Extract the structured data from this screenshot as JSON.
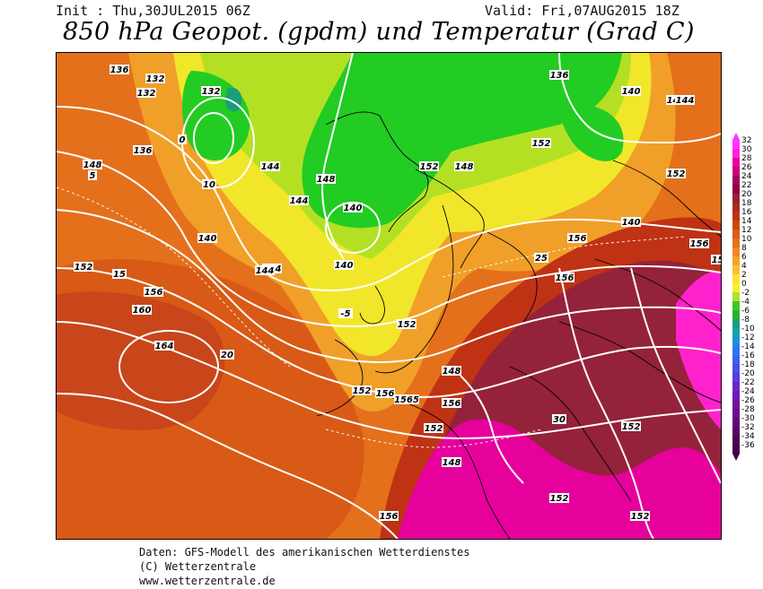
{
  "header": {
    "init_text": "Init : Thu,30JUL2015 06Z",
    "valid_text": "Valid: Fri,07AUG2015 18Z",
    "title": "850 hPa Geopot. (gpdm) und Temperatur (Grad C)"
  },
  "credits": {
    "line1": "Daten: GFS-Modell des amerikanischen Wetterdienstes",
    "line2": "(C) Wetterzentrale",
    "line3": "www.wetterzentrale.de"
  },
  "legend": {
    "ticks": [
      "32",
      "30",
      "28",
      "26",
      "24",
      "22",
      "20",
      "18",
      "16",
      "14",
      "12",
      "10",
      "8",
      "6",
      "4",
      "2",
      "0",
      "-2",
      "-4",
      "-6",
      "-8",
      "-10",
      "-12",
      "-14",
      "-16",
      "-18",
      "-20",
      "-22",
      "-24",
      "-26",
      "-28",
      "-30",
      "-32",
      "-34",
      "-36"
    ],
    "colors": [
      "#ff33ff",
      "#ff22dd",
      "#e6009c",
      "#c8007a",
      "#a8005a",
      "#90003c",
      "#96203a",
      "#a82a1e",
      "#c03214",
      "#d2440e",
      "#dc5a14",
      "#e4701c",
      "#ec8a22",
      "#f4a22a",
      "#f8c030",
      "#fce034",
      "#f4f02c",
      "#b4e02c",
      "#3cc82c",
      "#28b428",
      "#1c9c78",
      "#14a0b4",
      "#1e8cdc",
      "#2a78f0",
      "#3864f0",
      "#4650e6",
      "#5a3cdc",
      "#6628c8",
      "#6e1cb4",
      "#7014a0",
      "#6c0c8c",
      "#640878",
      "#5a0464",
      "#500050",
      "#460046"
    ],
    "arrow_top_color": "#ff33ff",
    "arrow_bottom_color": "#460046"
  },
  "map_labels": {
    "geopotential": [
      "136",
      "132",
      "132",
      "144",
      "148",
      "140",
      "152",
      "156",
      "160",
      "164",
      "140",
      "144",
      "152",
      "156",
      "148",
      "136",
      "140",
      "144",
      "152",
      "156",
      "152",
      "156",
      "152",
      "148",
      "140",
      "144",
      "152",
      "156",
      "156",
      "152",
      "152",
      "156",
      "132",
      "136",
      "148",
      "152",
      "140",
      "144",
      "1565",
      "156",
      "152",
      "148",
      "144"
    ],
    "temperature": [
      "5",
      "0",
      "10",
      "15",
      "20",
      "25",
      "30",
      "-5"
    ]
  },
  "colors": {
    "green": "#22cc22",
    "lime": "#a8e020",
    "yellow": "#f2e628",
    "gold": "#f4b428",
    "orange": "#ec8a22",
    "darkorange": "#e06a18",
    "red": "#c8421a",
    "darkred": "#94223a",
    "magenta": "#ff22cc",
    "contour": "#ffffff",
    "coast": "#000000"
  }
}
